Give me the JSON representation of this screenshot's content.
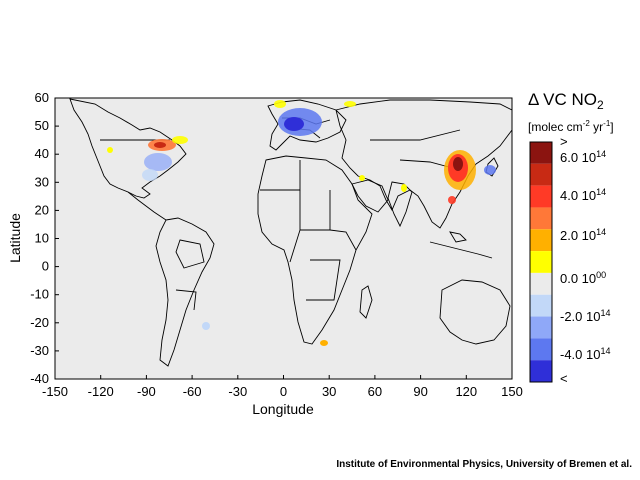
{
  "colors": {
    "ocean": "#ebebeb",
    "land_lines": "#000000",
    "legend": [
      "#2f2fd8",
      "#5d78f0",
      "#8fa8f8",
      "#c2d8f8",
      "#ebebeb",
      "#ffff00",
      "#ffb000",
      "#ff7838",
      "#ff3a26",
      "#c82a14",
      "#8b1410"
    ]
  },
  "legend": {
    "title": "Δ VC NO",
    "title_sub": "2",
    "units_pre": "[molec cm",
    "units_sup1": "-2",
    "units_mid": " yr",
    "units_sup2": "-1",
    "units_post": "]",
    "ticks": [
      {
        "base": ">",
        "exp": ""
      },
      {
        "base": "6.0 10",
        "exp": "14"
      },
      {
        "base": "4.0 10",
        "exp": "14"
      },
      {
        "base": "2.0 10",
        "exp": "14"
      },
      {
        "base": "0.0 10",
        "exp": "00"
      },
      {
        "base": "-2.0 10",
        "exp": "14"
      },
      {
        "base": "-4.0 10",
        "exp": "14"
      },
      {
        "base": "<",
        "exp": ""
      }
    ]
  },
  "axes": {
    "xlabel": "Longitude",
    "ylabel": "Latitude",
    "xrange": [
      -150,
      150
    ],
    "yrange": [
      -40,
      60
    ],
    "xticks": [
      "-150",
      "-120",
      "-90",
      "-60",
      "-30",
      "0",
      "30",
      "60",
      "90",
      "120",
      "150"
    ],
    "yticks": [
      "60",
      "50",
      "40",
      "30",
      "20",
      "10",
      "0",
      "-10",
      "-20",
      "-30",
      "-40"
    ]
  },
  "credit": "Institute of Environmental Physics, University of Bremen et al."
}
